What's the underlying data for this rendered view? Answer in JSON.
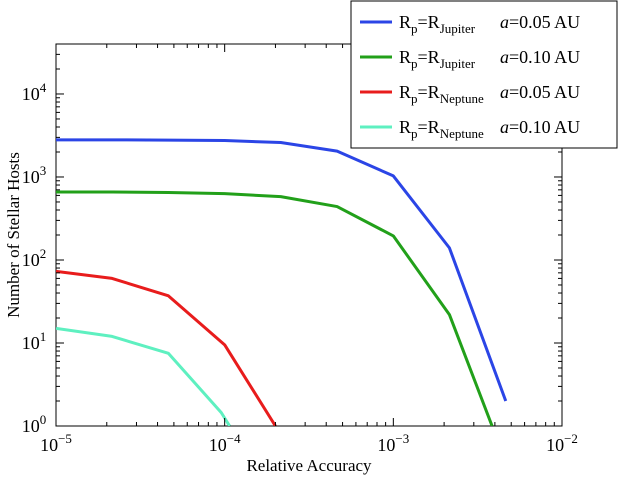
{
  "chart_data": {
    "type": "line",
    "xlabel": "Relative Accuracy",
    "ylabel": "Number of Stellar Hosts",
    "x_scale": "log",
    "y_scale": "log",
    "xlim": [
      1e-05,
      0.01
    ],
    "ylim": [
      1,
      40000
    ],
    "x_ticks": [
      {
        "base": "10",
        "exp": "−5",
        "value": 1e-05
      },
      {
        "base": "10",
        "exp": "−4",
        "value": 0.0001
      },
      {
        "base": "10",
        "exp": "−3",
        "value": 0.001
      },
      {
        "base": "10",
        "exp": "−2",
        "value": 0.01
      }
    ],
    "y_ticks": [
      {
        "base": "10",
        "exp": "0",
        "value": 1
      },
      {
        "base": "10",
        "exp": "1",
        "value": 10
      },
      {
        "base": "10",
        "exp": "2",
        "value": 100
      },
      {
        "base": "10",
        "exp": "3",
        "value": 1000
      },
      {
        "base": "10",
        "exp": "4",
        "value": 10000
      }
    ],
    "grid": false,
    "legend_position": "top-right",
    "series": [
      {
        "legend": {
          "r": "R",
          "p": "p",
          "eq": "=R",
          "planet": "Jupiter",
          "a": "a",
          "aval": "=0.05 AU"
        },
        "color": "#2b45e6",
        "x": [
          1e-05,
          2.15e-05,
          4.64e-05,
          0.0001,
          0.000215,
          0.000464,
          0.001,
          0.00215,
          0.00464
        ],
        "y": [
          2800,
          2800,
          2780,
          2750,
          2600,
          2050,
          1030,
          140,
          2
        ]
      },
      {
        "legend": {
          "r": "R",
          "p": "p",
          "eq": "=R",
          "planet": "Jupiter",
          "a": "a",
          "aval": "=0.10 AU"
        },
        "color": "#22a01a",
        "x": [
          1e-05,
          2.15e-05,
          4.64e-05,
          0.0001,
          0.000215,
          0.000464,
          0.001,
          0.00215,
          0.00385
        ],
        "y": [
          660,
          660,
          650,
          630,
          580,
          440,
          195,
          22,
          1
        ]
      },
      {
        "legend": {
          "r": "R",
          "p": "p",
          "eq": "=R",
          "planet": "Neptune",
          "a": "a",
          "aval": "=0.05 AU"
        },
        "color": "#e81c1c",
        "x": [
          1e-05,
          2.15e-05,
          4.64e-05,
          0.0001,
          0.0002
        ],
        "y": [
          73,
          60,
          37,
          9.5,
          1
        ]
      },
      {
        "legend": {
          "r": "R",
          "p": "p",
          "eq": "=R",
          "planet": "Neptune",
          "a": "a",
          "aval": "=0.10 AU"
        },
        "color": "#5ef0c0",
        "x": [
          1e-05,
          2.15e-05,
          4.64e-05,
          9.55e-05,
          0.000107
        ],
        "y": [
          15,
          12,
          7.5,
          1.45,
          1
        ]
      }
    ]
  }
}
